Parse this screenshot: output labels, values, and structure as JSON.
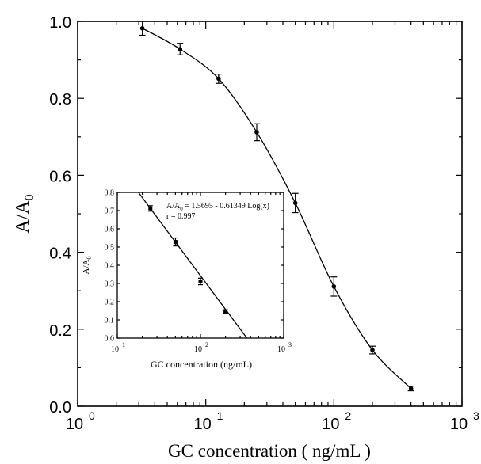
{
  "chart_data": [
    {
      "type": "scatter",
      "x_scale": "log",
      "xlim": [
        1,
        1000
      ],
      "ylim": [
        0.0,
        1.0
      ],
      "xlabel": "GC concentration ( ng/mL )",
      "ylabel": "A/A",
      "ylabel_sub": "0",
      "x_ticks": [
        {
          "value": 1,
          "base": "10",
          "exp": "0"
        },
        {
          "value": 10,
          "base": "10",
          "exp": "1"
        },
        {
          "value": 100,
          "base": "10",
          "exp": "2"
        },
        {
          "value": 1000,
          "base": "10",
          "exp": "3"
        }
      ],
      "y_ticks": [
        "0.0",
        "0.2",
        "0.4",
        "0.6",
        "0.8",
        "1.0"
      ],
      "curve": "sigmoidal fit",
      "points": [
        {
          "x": 3.2,
          "y": 0.982,
          "err": 0.018
        },
        {
          "x": 6.3,
          "y": 0.928,
          "err": 0.015
        },
        {
          "x": 12.6,
          "y": 0.851,
          "err": 0.012
        },
        {
          "x": 25,
          "y": 0.712,
          "err": 0.022
        },
        {
          "x": 50,
          "y": 0.528,
          "err": 0.025
        },
        {
          "x": 100,
          "y": 0.311,
          "err": 0.025
        },
        {
          "x": 200,
          "y": 0.146,
          "err": 0.01
        },
        {
          "x": 400,
          "y": 0.046,
          "err": 0.006
        }
      ]
    },
    {
      "type": "scatter",
      "inset": true,
      "x_scale": "log",
      "xlim": [
        10,
        1000
      ],
      "ylim": [
        0.0,
        0.8
      ],
      "xlabel": "GC concentration (ng/mL)",
      "ylabel": "A/A",
      "ylabel_sub": "0",
      "x_ticks": [
        {
          "value": 10,
          "base": "10",
          "exp": "1"
        },
        {
          "value": 100,
          "base": "10",
          "exp": "2"
        },
        {
          "value": 1000,
          "base": "10",
          "exp": "3"
        }
      ],
      "y_ticks": [
        "0.0",
        "0.1",
        "0.2",
        "0.3",
        "0.4",
        "0.5",
        "0.6",
        "0.7",
        "0.8"
      ],
      "equation": "A/A",
      "equation_sub": "0",
      "equation_rest": " = 1.5695 - 0.61349 Log(x)",
      "r_text": "r = 0.997",
      "fit": {
        "intercept": 1.5695,
        "slope": -0.61349
      },
      "points": [
        {
          "x": 25,
          "y": 0.712,
          "err": 0.015
        },
        {
          "x": 50,
          "y": 0.528,
          "err": 0.022
        },
        {
          "x": 100,
          "y": 0.311,
          "err": 0.018
        },
        {
          "x": 200,
          "y": 0.146,
          "err": 0.01
        }
      ]
    }
  ]
}
